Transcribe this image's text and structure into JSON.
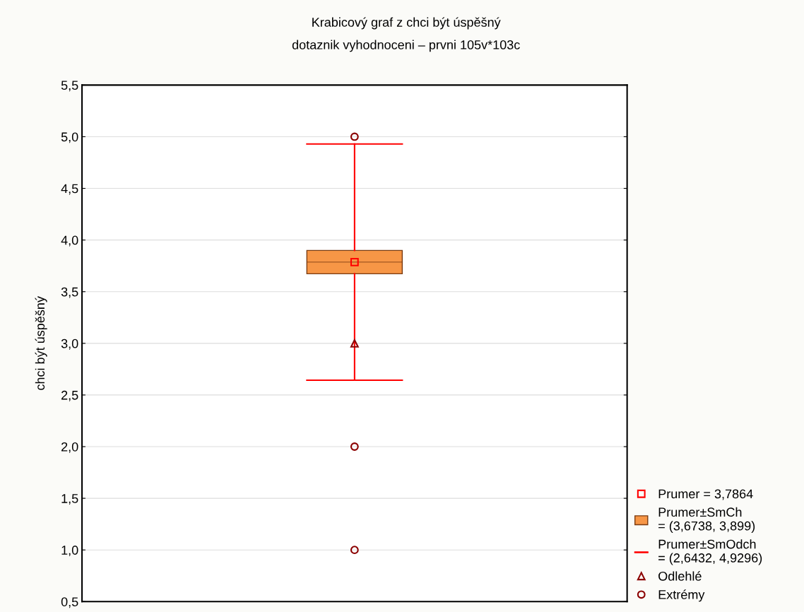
{
  "chart_data": {
    "type": "box",
    "title": "Krabicový graf z chci být úspěšný",
    "subtitle": "dotaznik vyhodnoceni – prvni 105v*103c",
    "ylabel": "chci být úspěšný",
    "categories": [
      null
    ],
    "annotations": [
      "Prumer = 3,7864",
      "Prumer±SmCh\n= (3,6738, 3,899)",
      "Prumer±SmOdch\n= (2,6432, 4,9296)"
    ],
    "series": [
      {
        "color": "#f79646",
        "boxes": [
          {
            "low": 2.6432,
            "q1": 3.6738,
            "median": 3.7864,
            "q3": 3.899,
            "high": 4.9296,
            "mean": 3.7864
          }
        ]
      },
      {
        "type": "scatter",
        "name": "Odlehlé",
        "color": "#8b0000",
        "marker": "triangle",
        "x": [
          null
        ],
        "values": [
          3
        ]
      },
      {
        "type": "scatter",
        "name": "Extrémy",
        "color": "#8b0000",
        "marker": "circle",
        "x": [
          null,
          null,
          null
        ],
        "values": [
          5,
          2,
          1
        ]
      }
    ],
    "ylim": [
      0.5,
      5.5
    ],
    "yticks": [
      {
        "value": 0.5,
        "label": "0,5"
      },
      {
        "value": 1.0,
        "label": "1,0"
      },
      {
        "value": 1.5,
        "label": "1,5"
      },
      {
        "value": 2.0,
        "label": "2,0"
      },
      {
        "value": 2.5,
        "label": "2,5"
      },
      {
        "value": 3.0,
        "label": "3,0"
      },
      {
        "value": 3.5,
        "label": "3,5"
      },
      {
        "value": 4.0,
        "label": "4,0"
      },
      {
        "value": 4.5,
        "label": "4,5"
      },
      {
        "value": 5.0,
        "label": "5,0"
      },
      {
        "value": 5.5,
        "label": "5,5"
      }
    ],
    "grid": "y",
    "legend": "bottom right"
  }
}
